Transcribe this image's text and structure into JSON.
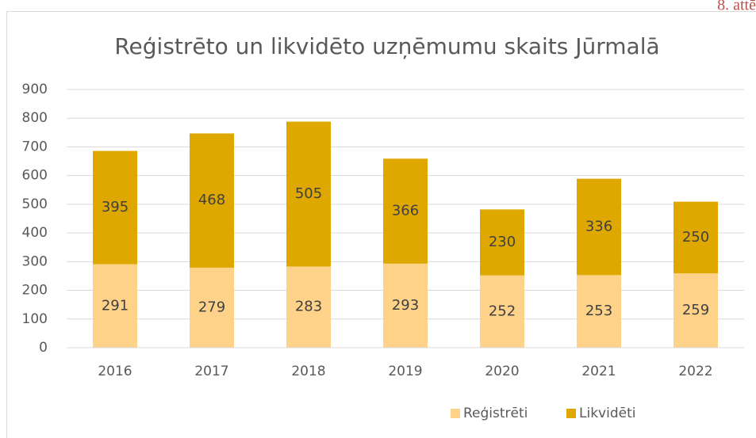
{
  "chart_data": {
    "type": "bar",
    "stacked": true,
    "title": "Reģistrēto un likvidēto uzņēmumu skaits Jūrmalā",
    "annotation": "8. attē",
    "categories": [
      "2016",
      "2017",
      "2018",
      "2019",
      "2020",
      "2021",
      "2022"
    ],
    "series": [
      {
        "name": "Reģistrēti",
        "color": "#ffd28a",
        "values": [
          291,
          279,
          283,
          293,
          252,
          253,
          259
        ]
      },
      {
        "name": "Likvidēti",
        "color": "#dfa800",
        "values": [
          395,
          468,
          505,
          366,
          230,
          336,
          250
        ]
      }
    ],
    "ylim": [
      0,
      900
    ],
    "yticks": [
      0,
      100,
      200,
      300,
      400,
      500,
      600,
      700,
      800,
      900
    ],
    "grid": true,
    "legend": "bottom"
  }
}
